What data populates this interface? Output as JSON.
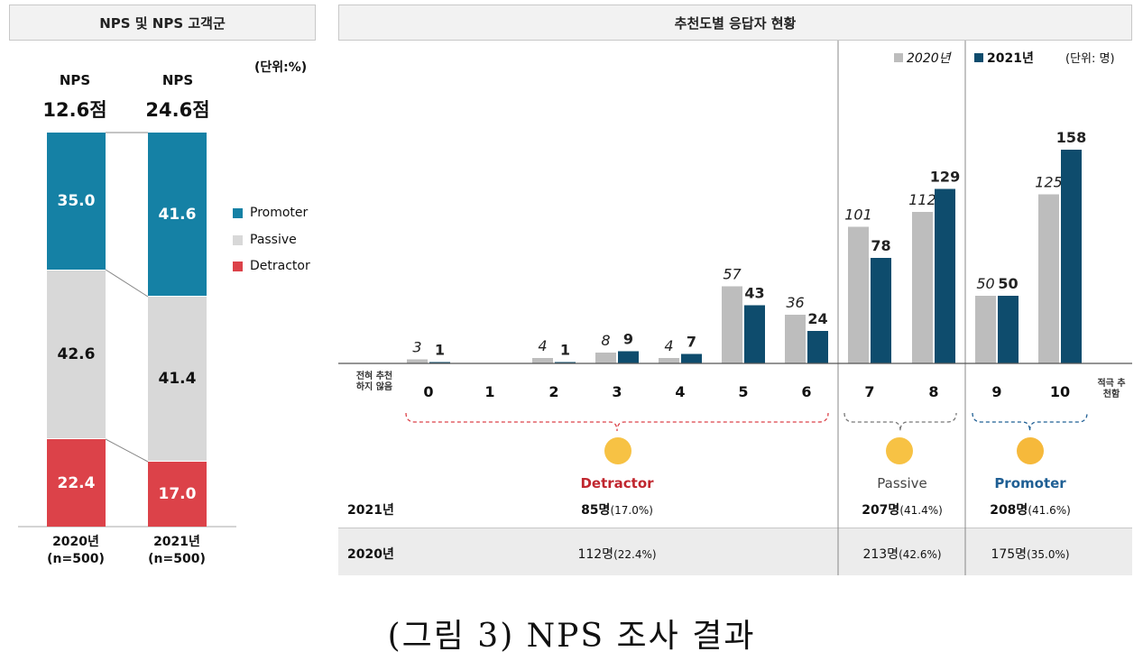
{
  "left_panel": {
    "title": "NPS 및 NPS 고객군",
    "unit": "(단위:%)",
    "bars": [
      {
        "nps_label": "NPS",
        "nps_score": "12.6점",
        "promoter": "35.0",
        "passive": "42.6",
        "detractor": "22.4",
        "xlabel": "2020년",
        "xsub": "(n=500)"
      },
      {
        "nps_label": "NPS",
        "nps_score": "24.6점",
        "promoter": "41.6",
        "passive": "41.4",
        "detractor": "17.0",
        "xlabel": "2021년",
        "xsub": "(n=500)"
      }
    ],
    "legend": [
      "Promoter",
      "Passive",
      "Detractor"
    ]
  },
  "right_panel": {
    "title": "추천도별 응답자 현황",
    "legend_2020": "2020년",
    "legend_2021": "2021년",
    "unit": "(단위: 명)",
    "scale_low": "전혀 추천하지 않음",
    "scale_high": "적극 추천함",
    "groups": {
      "detractor": {
        "name": "Detractor",
        "r2021": "85명",
        "p2021": "(17.0%)",
        "r2020": "112명",
        "p2020": "(22.4%)"
      },
      "passive": {
        "name": "Passive",
        "r2021": "207명",
        "p2021": "(41.4%)",
        "r2020": "213명",
        "p2020": "(42.6%)"
      },
      "promoter": {
        "name": "Promoter",
        "r2021": "208명",
        "p2021": "(41.6%)",
        "r2020": "175명",
        "p2020": "(35.0%)"
      }
    },
    "row_2021": "2021년",
    "row_2020": "2020년"
  },
  "caption": "(그림 3) NPS 조사 결과",
  "colors": {
    "promoter": "#1581a5",
    "passive": "#d8d8d8",
    "detractor": "#dc4249",
    "bar2020": "#bdbdbd",
    "bar2021": "#0e4c6d"
  },
  "chart_data": [
    {
      "type": "bar",
      "title": "NPS 및 NPS 고객군",
      "stacked": true,
      "categories": [
        "2020년",
        "2021년"
      ],
      "series": [
        {
          "name": "Detractor",
          "values": [
            22.4,
            17.0
          ]
        },
        {
          "name": "Passive",
          "values": [
            42.6,
            41.4
          ]
        },
        {
          "name": "Promoter",
          "values": [
            35.0,
            41.6
          ]
        }
      ],
      "nps": [
        12.6,
        24.6
      ],
      "legend": "right"
    },
    {
      "type": "bar",
      "title": "추천도별 응답자 현황",
      "categories": [
        "0",
        "1",
        "2",
        "3",
        "4",
        "5",
        "6",
        "7",
        "8",
        "9",
        "10"
      ],
      "series": [
        {
          "name": "2020년",
          "values": [
            3,
            null,
            4,
            8,
            4,
            57,
            36,
            101,
            112,
            50,
            125
          ]
        },
        {
          "name": "2021년",
          "values": [
            1,
            null,
            1,
            9,
            7,
            43,
            24,
            78,
            129,
            50,
            158
          ]
        }
      ],
      "ylim": [
        0,
        170
      ],
      "legend": "top-right"
    }
  ]
}
